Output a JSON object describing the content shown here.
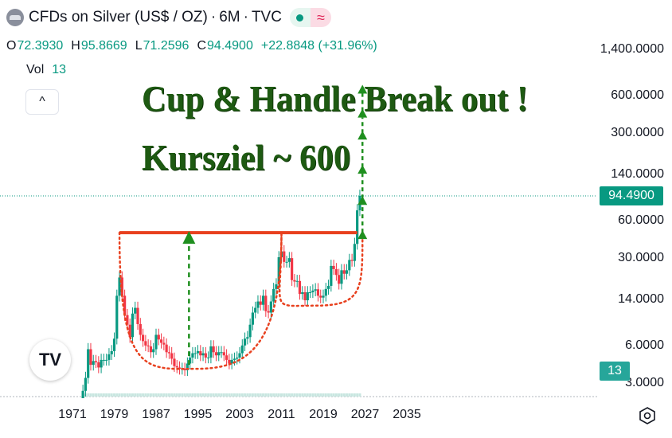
{
  "header": {
    "title": "CFDs on Silver (US$ / OZ)",
    "separator": "·",
    "interval": "6M",
    "source": "TVC",
    "wave_glyph": "≈"
  },
  "ohlc": {
    "open_label": "O",
    "open": "72.3930",
    "high_label": "H",
    "high": "95.8669",
    "low_label": "L",
    "low": "71.2596",
    "close_label": "C",
    "close": "94.4900",
    "change": "+22.8848 (+31.96%)"
  },
  "volume": {
    "label": "Vol",
    "value": "13"
  },
  "collapse_glyph": "^",
  "annotations": {
    "line1": "Cup & Handle Break out !",
    "line2": "Kursziel ~ 600"
  },
  "tv_logo_text": "TV",
  "colors": {
    "up": "#089981",
    "down": "#f23645",
    "resistance": "#e8411f",
    "cup": "#e8411f",
    "arrow": "#1f8f1f",
    "annotation": "#1e5a12"
  },
  "chart_data": {
    "type": "candlestick",
    "symbol": "CFDs on Silver (US$ / OZ)",
    "interval": "6M",
    "y_scale": "log",
    "y_ticks": [
      "1,400.0000",
      "600.0000",
      "300.0000",
      "140.0000",
      "60.0000",
      "30.0000",
      "14.0000",
      "6.0000",
      "3.0000"
    ],
    "y_tick_values": [
      1400,
      600,
      300,
      140,
      60,
      30,
      14,
      6,
      3
    ],
    "x_ticks": [
      "1971",
      "1979",
      "1987",
      "1995",
      "2003",
      "2011",
      "2019",
      "2027",
      "2035"
    ],
    "x_tick_values": [
      1971,
      1979,
      1987,
      1995,
      2003,
      2011,
      2019,
      2027,
      2035
    ],
    "last_price": "94.4900",
    "last_volume": "13",
    "resistance_level": 48,
    "resistance_range": [
      1980,
      2025.5
    ],
    "cups": [
      {
        "from": 1980,
        "to": 2011,
        "bottom_year": 1994.5,
        "bottom_price": 3.9,
        "rim_price": 48
      },
      {
        "from": 2011,
        "to": 2026.5,
        "bottom_year": 2017.5,
        "bottom_price": 12.5,
        "rim_price": 48
      }
    ],
    "target_arrow": {
      "year": 1993.3,
      "from": 4.2,
      "to": 48
    },
    "upside_arrows": {
      "year": 2026.5,
      "levels": [
        48,
        48,
        90,
        160,
        300,
        450,
        700
      ]
    },
    "price_path": [
      [
        1972.0,
        2.1
      ],
      [
        1973.0,
        2.6
      ],
      [
        1973.5,
        3.3
      ],
      [
        1974.0,
        5.6
      ],
      [
        1974.5,
        4.2
      ],
      [
        1975.0,
        4.5
      ],
      [
        1975.5,
        4.4
      ],
      [
        1976.0,
        4.0
      ],
      [
        1976.5,
        4.6
      ],
      [
        1977.0,
        4.6
      ],
      [
        1977.5,
        4.6
      ],
      [
        1978.0,
        5.1
      ],
      [
        1978.5,
        5.4
      ],
      [
        1979.0,
        6.8
      ],
      [
        1979.5,
        15.0
      ],
      [
        1980.0,
        21.0
      ],
      [
        1980.5,
        15.0
      ],
      [
        1981.0,
        10.5
      ],
      [
        1981.5,
        8.8
      ],
      [
        1982.0,
        7.0
      ],
      [
        1982.5,
        10.8
      ],
      [
        1983.0,
        12.0
      ],
      [
        1983.5,
        8.9
      ],
      [
        1984.0,
        7.3
      ],
      [
        1984.5,
        6.5
      ],
      [
        1985.0,
        6.0
      ],
      [
        1985.5,
        5.9
      ],
      [
        1986.0,
        5.3
      ],
      [
        1986.5,
        5.6
      ],
      [
        1987.0,
        7.3
      ],
      [
        1987.5,
        6.7
      ],
      [
        1988.0,
        6.3
      ],
      [
        1988.5,
        6.1
      ],
      [
        1989.0,
        5.3
      ],
      [
        1989.5,
        5.2
      ],
      [
        1990.0,
        4.7
      ],
      [
        1990.5,
        4.1
      ],
      [
        1991.0,
        4.0
      ],
      [
        1991.5,
        3.9
      ],
      [
        1992.0,
        3.9
      ],
      [
        1992.5,
        3.8
      ],
      [
        1993.0,
        4.3
      ],
      [
        1993.5,
        4.8
      ],
      [
        1994.0,
        5.2
      ],
      [
        1994.5,
        5.2
      ],
      [
        1995.0,
        5.4
      ],
      [
        1995.5,
        5.0
      ],
      [
        1996.0,
        5.2
      ],
      [
        1996.5,
        4.8
      ],
      [
        1997.0,
        4.8
      ],
      [
        1997.5,
        5.9
      ],
      [
        1998.0,
        5.3
      ],
      [
        1998.5,
        5.0
      ],
      [
        1999.0,
        5.3
      ],
      [
        1999.5,
        5.3
      ],
      [
        2000.0,
        5.0
      ],
      [
        2000.5,
        4.6
      ],
      [
        2001.0,
        4.3
      ],
      [
        2001.5,
        4.6
      ],
      [
        2002.0,
        4.7
      ],
      [
        2002.5,
        4.8
      ],
      [
        2003.0,
        5.2
      ],
      [
        2003.5,
        6.0
      ],
      [
        2004.0,
        6.8
      ],
      [
        2004.5,
        7.0
      ],
      [
        2005.0,
        8.8
      ],
      [
        2005.5,
        11.0
      ],
      [
        2006.0,
        12.0
      ],
      [
        2006.5,
        13.5
      ],
      [
        2007.0,
        12.7
      ],
      [
        2007.5,
        15.0
      ],
      [
        2008.0,
        11.3
      ],
      [
        2008.5,
        11.0
      ],
      [
        2009.0,
        13.5
      ],
      [
        2009.5,
        17.0
      ],
      [
        2010.0,
        18.5
      ],
      [
        2010.5,
        30.5
      ],
      [
        2011.0,
        34.0
      ],
      [
        2011.5,
        28.0
      ],
      [
        2012.0,
        28.0
      ],
      [
        2012.5,
        30.0
      ],
      [
        2013.0,
        20.0
      ],
      [
        2013.5,
        19.5
      ],
      [
        2014.0,
        19.7
      ],
      [
        2014.5,
        15.5
      ],
      [
        2015.0,
        16.0
      ],
      [
        2015.5,
        13.8
      ],
      [
        2016.0,
        16.0
      ],
      [
        2016.5,
        16.0
      ],
      [
        2017.0,
        16.5
      ],
      [
        2017.5,
        16.9
      ],
      [
        2018.0,
        15.0
      ],
      [
        2018.5,
        14.5
      ],
      [
        2019.0,
        15.0
      ],
      [
        2019.5,
        17.0
      ],
      [
        2020.0,
        18.0
      ],
      [
        2020.5,
        26.0
      ],
      [
        2021.0,
        24.5
      ],
      [
        2021.5,
        22.0
      ],
      [
        2022.0,
        18.7
      ],
      [
        2022.5,
        24.0
      ],
      [
        2023.0,
        22.5
      ],
      [
        2023.5,
        24.0
      ],
      [
        2024.0,
        29.0
      ],
      [
        2024.5,
        28.5
      ],
      [
        2025.0,
        39.0
      ],
      [
        2025.5,
        72.4
      ],
      [
        2026.0,
        94.49
      ]
    ]
  }
}
